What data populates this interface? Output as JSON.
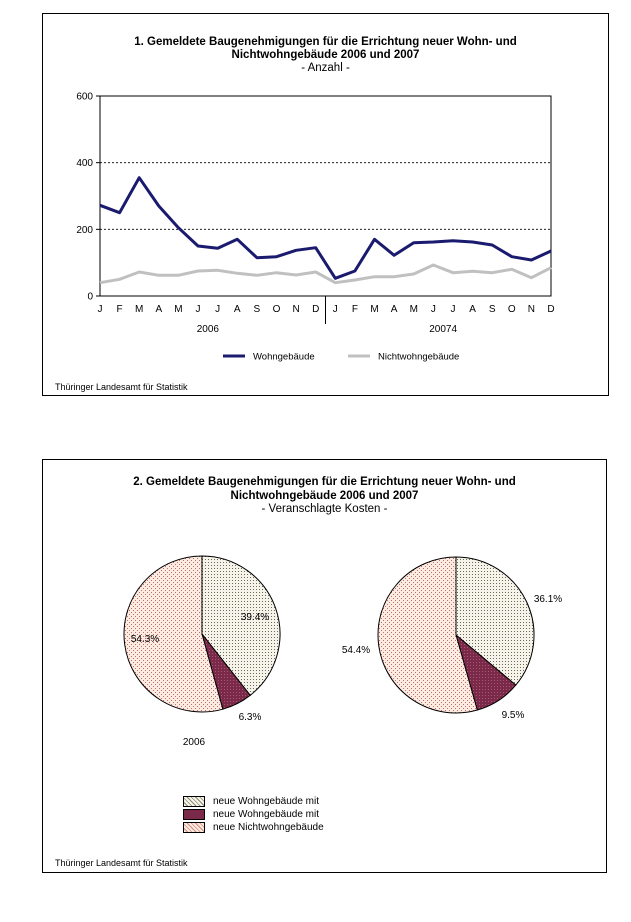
{
  "chart_data": [
    {
      "type": "line",
      "title": "1. Gemeldete Baugenehmigungen für die Errichtung neuer Wohn- und Nichtwohngebäude 2006 und 2007",
      "title_line1": "1. Gemeldete Baugenehmigungen für die Errichtung neuer Wohn- und",
      "title_line2": "Nichtwohngebäude 2006 und 2007",
      "subtitle": "- Anzahl -",
      "categories": [
        "J",
        "F",
        "M",
        "A",
        "M",
        "J",
        "J",
        "A",
        "S",
        "O",
        "N",
        "D",
        "J",
        "F",
        "M",
        "A",
        "M",
        "J",
        "J",
        "A",
        "S",
        "O",
        "N",
        "D"
      ],
      "year_labels": [
        "2006",
        "20074"
      ],
      "yticks": [
        0,
        200,
        400,
        600
      ],
      "ylim": [
        0,
        600
      ],
      "grid": "dashed-horizontal",
      "legend_position": "bottom",
      "series": [
        {
          "name": "Wohngebäude",
          "color": "#1a1a6e",
          "values": [
            272,
            250,
            355,
            270,
            205,
            150,
            143,
            170,
            115,
            118,
            137,
            145,
            53,
            75,
            170,
            122,
            160,
            162,
            166,
            162,
            153,
            118,
            108,
            135
          ]
        },
        {
          "name": "Nichtwohngebäude",
          "color": "#c0c0c0",
          "values": [
            40,
            50,
            72,
            62,
            62,
            75,
            77,
            68,
            62,
            70,
            63,
            72,
            40,
            48,
            58,
            58,
            66,
            93,
            70,
            74,
            70,
            80,
            55,
            85
          ]
        }
      ],
      "source": "Thüringer Landesamt für Statistik"
    },
    {
      "type": "pie",
      "title": "2. Gemeldete Baugenehmigungen für die Errichtung neuer Wohn- und Nichtwohngebäude 2006 und 2007",
      "title_line1": "2. Gemeldete Baugenehmigungen für die Errichtung neuer Wohn- und",
      "title_line2": "Nichtwohngebäude 2006 und 2007",
      "subtitle": "- Veranschlagte Kosten -",
      "pies": [
        {
          "label": "2006",
          "values": [
            39.4,
            6.3,
            54.3
          ],
          "value_labels": [
            "39.4%",
            "6.3%",
            "54.3%"
          ]
        },
        {
          "label": "",
          "values": [
            36.1,
            9.5,
            54.4
          ],
          "value_labels": [
            "36.1%",
            "9.5%",
            "54.4%"
          ]
        }
      ],
      "legend": [
        "neue Wohngebäude mit",
        "neue Wohngebäude mit",
        "neue Nichtwohngebäude"
      ],
      "colors": [
        "#f3f1e4",
        "#7a2a48",
        "#f9e6dc"
      ],
      "source": "Thüringer Landesamt für Statistik"
    }
  ]
}
